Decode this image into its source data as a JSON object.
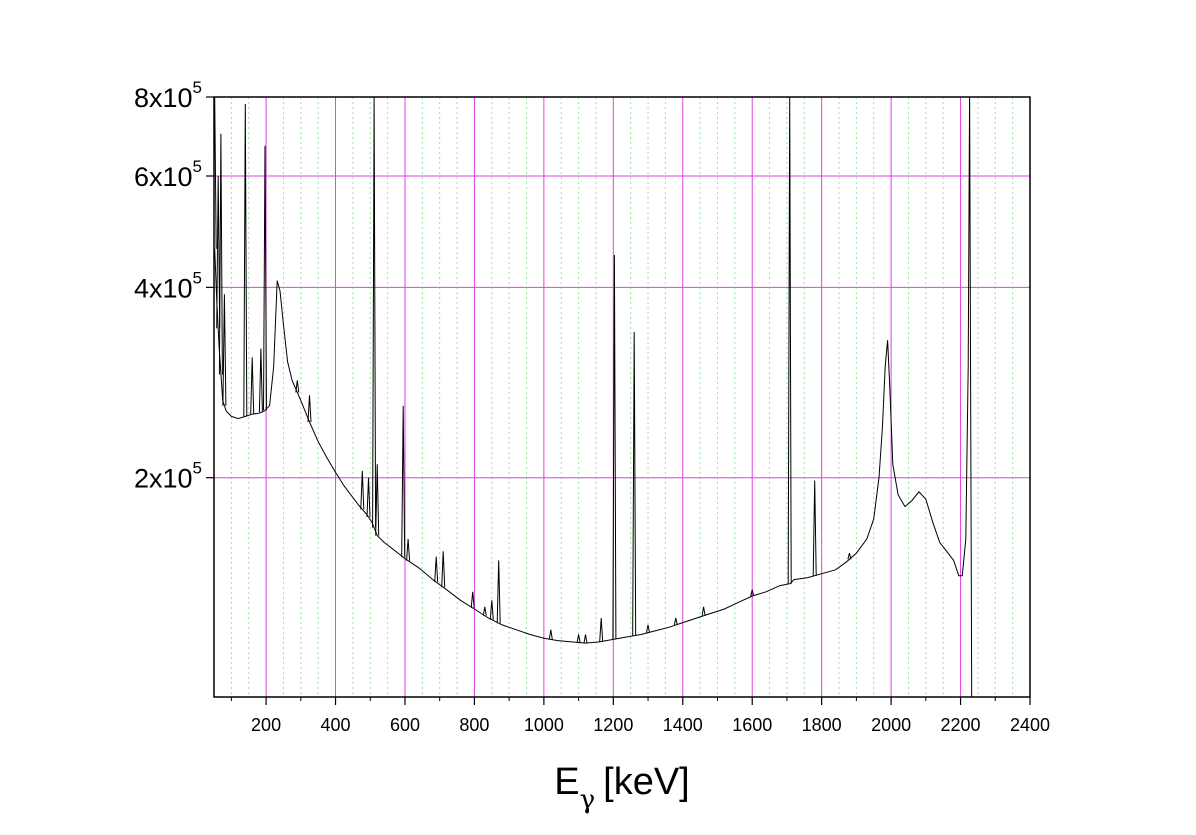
{
  "chart_data": {
    "type": "line",
    "title": "",
    "xlabel": "E",
    "xlabel_subscript": "γ",
    "xlabel_unit": "[keV]",
    "ylabel": "",
    "xlim": [
      50,
      2400
    ],
    "ylim": [
      90000,
      800000
    ],
    "y_scale": "log",
    "grid": true,
    "x_ticks": [
      {
        "value": 200,
        "label": "200"
      },
      {
        "value": 400,
        "label": "400"
      },
      {
        "value": 600,
        "label": "600"
      },
      {
        "value": 800,
        "label": "800"
      },
      {
        "value": 1000,
        "label": "1000"
      },
      {
        "value": 1200,
        "label": "1200"
      },
      {
        "value": 1400,
        "label": "1400"
      },
      {
        "value": 1600,
        "label": "1600"
      },
      {
        "value": 1800,
        "label": "1800"
      },
      {
        "value": 2000,
        "label": "2000"
      },
      {
        "value": 2200,
        "label": "2200"
      },
      {
        "value": 2400,
        "label": "2400"
      }
    ],
    "y_ticks": [
      {
        "value": 200000,
        "mantissa": "2x10",
        "exponent": "5"
      },
      {
        "value": 400000,
        "mantissa": "4x10",
        "exponent": "5"
      },
      {
        "value": 600000,
        "mantissa": "6x10",
        "exponent": "5"
      },
      {
        "value": 800000,
        "mantissa": "8x10",
        "exponent": "5"
      }
    ],
    "series": [
      {
        "color": "#000000",
        "points": [
          [
            52,
            460000
          ],
          [
            58,
            380000
          ],
          [
            65,
            320000
          ],
          [
            75,
            265000
          ],
          [
            85,
            255000
          ],
          [
            100,
            250000
          ],
          [
            120,
            248000
          ],
          [
            140,
            250000
          ],
          [
            160,
            252000
          ],
          [
            180,
            253000
          ],
          [
            195,
            255000
          ],
          [
            210,
            260000
          ],
          [
            222,
            300000
          ],
          [
            232,
            410000
          ],
          [
            240,
            395000
          ],
          [
            250,
            350000
          ],
          [
            262,
            305000
          ],
          [
            275,
            285000
          ],
          [
            300,
            265000
          ],
          [
            325,
            245000
          ],
          [
            350,
            228000
          ],
          [
            375,
            215000
          ],
          [
            400,
            204000
          ],
          [
            425,
            194000
          ],
          [
            450,
            186000
          ],
          [
            470,
            180000
          ],
          [
            490,
            175000
          ],
          [
            505,
            170000
          ],
          [
            520,
            162000
          ],
          [
            540,
            158000
          ],
          [
            560,
            155000
          ],
          [
            580,
            152000
          ],
          [
            600,
            149000
          ],
          [
            640,
            144000
          ],
          [
            680,
            138000
          ],
          [
            720,
            133000
          ],
          [
            760,
            128000
          ],
          [
            800,
            124000
          ],
          [
            840,
            120000
          ],
          [
            880,
            117000
          ],
          [
            920,
            115000
          ],
          [
            960,
            113000
          ],
          [
            1000,
            111500
          ],
          [
            1040,
            110500
          ],
          [
            1080,
            110000
          ],
          [
            1120,
            109500
          ],
          [
            1160,
            110000
          ],
          [
            1200,
            111000
          ],
          [
            1240,
            112000
          ],
          [
            1280,
            113000
          ],
          [
            1320,
            114500
          ],
          [
            1360,
            116000
          ],
          [
            1400,
            118000
          ],
          [
            1440,
            120000
          ],
          [
            1480,
            122000
          ],
          [
            1520,
            124000
          ],
          [
            1560,
            127000
          ],
          [
            1600,
            130000
          ],
          [
            1640,
            132000
          ],
          [
            1680,
            135000
          ],
          [
            1710,
            136000
          ],
          [
            1720,
            138000
          ],
          [
            1760,
            139000
          ],
          [
            1800,
            141000
          ],
          [
            1840,
            143000
          ],
          [
            1870,
            147000
          ],
          [
            1900,
            152000
          ],
          [
            1930,
            160000
          ],
          [
            1950,
            172000
          ],
          [
            1965,
            200000
          ],
          [
            1975,
            240000
          ],
          [
            1983,
            300000
          ],
          [
            1990,
            330000
          ],
          [
            1996,
            280000
          ],
          [
            2005,
            210000
          ],
          [
            2020,
            188000
          ],
          [
            2040,
            180000
          ],
          [
            2060,
            184000
          ],
          [
            2080,
            190000
          ],
          [
            2100,
            185000
          ],
          [
            2120,
            170000
          ],
          [
            2140,
            158000
          ],
          [
            2160,
            153000
          ],
          [
            2180,
            148000
          ],
          [
            2195,
            140000
          ],
          [
            2205,
            140000
          ],
          [
            2215,
            160000
          ],
          [
            2222,
            300000
          ],
          [
            2226,
            820000
          ],
          [
            2232,
            90000
          ]
        ],
        "peaks": [
          [
            52,
            800000
          ],
          [
            62,
            600000
          ],
          [
            70,
            700000
          ],
          [
            80,
            390000
          ],
          [
            140,
            780000
          ],
          [
            160,
            310000
          ],
          [
            185,
            320000
          ],
          [
            197,
            670000
          ],
          [
            290,
            285000
          ],
          [
            325,
            270000
          ],
          [
            477,
            205000
          ],
          [
            495,
            200000
          ],
          [
            511,
            800000
          ],
          [
            520,
            210000
          ],
          [
            595,
            260000
          ],
          [
            609,
            160000
          ],
          [
            690,
            150000
          ],
          [
            710,
            153000
          ],
          [
            795,
            132000
          ],
          [
            830,
            125000
          ],
          [
            850,
            128000
          ],
          [
            870,
            148000
          ],
          [
            1020,
            115000
          ],
          [
            1100,
            113000
          ],
          [
            1120,
            113000
          ],
          [
            1165,
            120000
          ],
          [
            1203,
            450000
          ],
          [
            1260,
            340000
          ],
          [
            1300,
            117000
          ],
          [
            1380,
            120000
          ],
          [
            1460,
            125000
          ],
          [
            1600,
            133000
          ],
          [
            1708,
            800000
          ],
          [
            1780,
            198000
          ],
          [
            1880,
            152000
          ]
        ]
      }
    ]
  }
}
